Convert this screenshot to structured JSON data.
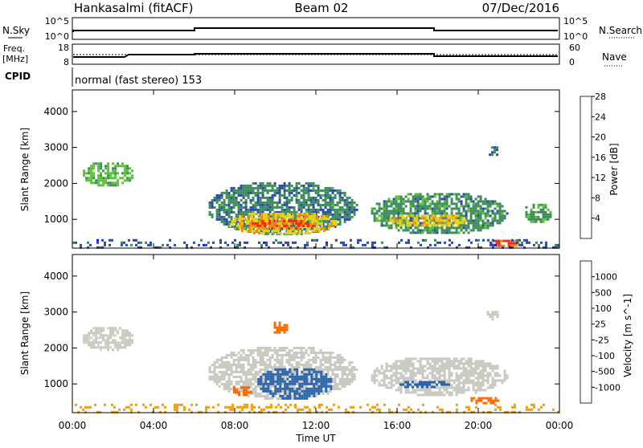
{
  "header": {
    "station": "Hankasalmi (fitACF)",
    "beam": "Beam 02",
    "date": "07/Dec/2016"
  },
  "strip_labels": {
    "nsky": "N.Sky",
    "nsky_hi": "10^5",
    "nsky_lo": "10^0",
    "nsearch": "N.Search",
    "nsearch_hi": "10^5",
    "nsearch_lo": "10^0",
    "freq": "Freq.",
    "freq_unit": "[MHz]",
    "freq_hi": "18",
    "freq_lo": "8",
    "nave": "Nave",
    "nave_hi": "60",
    "nave_lo": "0",
    "cpid": "CPID",
    "cpid_text": "normal (fast stereo) 153"
  },
  "colors": {
    "power": [
      "#1414ff",
      "#2a4aa8",
      "#3c8c5a",
      "#58c234",
      "#e8d018",
      "#f08a10",
      "#f02a10"
    ],
    "velocity": [
      "#1e3cb4",
      "#2a64aa",
      "#2e9a4a",
      "#52c828",
      "#c8c8c0",
      "#d2d2c8",
      "#f0a010",
      "#ff6a00",
      "#ee1e12"
    ]
  },
  "chart_data": [
    {
      "type": "heatmap",
      "name": "power",
      "ylabel": "Slant Range [km]",
      "colorbar_label": "Power [dB]",
      "colorbar_ticks": [
        "4",
        "8",
        "12",
        "16",
        "20",
        "24",
        "28"
      ],
      "ylim": [
        200,
        4600
      ],
      "y_ticks": [
        "1000",
        "2000",
        "3000",
        "4000"
      ],
      "y_tick_values": [
        1000,
        2000,
        3000,
        4000
      ],
      "xlim": [
        0,
        24
      ],
      "patches": [
        {
          "x": [
            0.4,
            3.0
          ],
          "y": [
            1950,
            2650
          ],
          "value": 14
        },
        {
          "x": [
            6.6,
            14.0
          ],
          "y": [
            600,
            2100
          ],
          "value": 10
        },
        {
          "x": [
            7.6,
            13.0
          ],
          "y": [
            600,
            1250
          ],
          "value": 20
        },
        {
          "x": [
            8.6,
            12.0
          ],
          "y": [
            750,
            1050
          ],
          "value": 26
        },
        {
          "x": [
            14.6,
            21.4
          ],
          "y": [
            600,
            1800
          ],
          "value": 11
        },
        {
          "x": [
            15.5,
            19.5
          ],
          "y": [
            800,
            1200
          ],
          "value": 20
        },
        {
          "x": [
            20.5,
            22.0
          ],
          "y": [
            250,
            500
          ],
          "value": 26
        },
        {
          "x": [
            22.2,
            23.6
          ],
          "y": [
            900,
            1500
          ],
          "value": 12
        },
        {
          "x": [
            20.4,
            21.0
          ],
          "y": [
            2800,
            3100
          ],
          "value": 9
        },
        {
          "x": [
            0.0,
            24.0
          ],
          "y": [
            220,
            450
          ],
          "value": 7
        }
      ]
    },
    {
      "type": "heatmap",
      "name": "velocity",
      "ylabel": "Slant Range [km]",
      "colorbar_label": "Velocity [m s^-1]",
      "colorbar_ticks": [
        "1000",
        "500",
        "100",
        "25",
        "-25",
        "-100",
        "-500",
        "-1000"
      ],
      "ylim": [
        200,
        4600
      ],
      "y_ticks": [
        "1000",
        "2000",
        "3000",
        "4000"
      ],
      "y_tick_values": [
        1000,
        2000,
        3000,
        4000
      ],
      "xlim": [
        0,
        24
      ],
      "x_ticks": [
        "00:00",
        "04:00",
        "08:00",
        "12:00",
        "16:00",
        "20:00",
        "00:00"
      ],
      "x_tick_values": [
        0,
        4,
        8,
        12,
        16,
        20,
        24
      ],
      "xlabel": "Time UT",
      "patches": [
        {
          "x": [
            0.4,
            3.0
          ],
          "y": [
            1950,
            2650
          ],
          "value": 5
        },
        {
          "x": [
            6.6,
            14.0
          ],
          "y": [
            600,
            2100
          ],
          "value": 10
        },
        {
          "x": [
            9.0,
            12.8
          ],
          "y": [
            600,
            1500
          ],
          "value": 150
        },
        {
          "x": [
            7.8,
            8.8
          ],
          "y": [
            700,
            1000
          ],
          "value": -200
        },
        {
          "x": [
            14.6,
            21.4
          ],
          "y": [
            700,
            1800
          ],
          "value": 10
        },
        {
          "x": [
            16.0,
            18.5
          ],
          "y": [
            900,
            1150
          ],
          "value": 150
        },
        {
          "x": [
            19.5,
            21.0
          ],
          "y": [
            450,
            700
          ],
          "value": -150
        },
        {
          "x": [
            9.8,
            10.6
          ],
          "y": [
            2400,
            2800
          ],
          "value": -300
        },
        {
          "x": [
            20.3,
            21.0
          ],
          "y": [
            2800,
            3100
          ],
          "value": 8
        },
        {
          "x": [
            0.0,
            24.0
          ],
          "y": [
            220,
            450
          ],
          "value": -60
        }
      ]
    }
  ]
}
